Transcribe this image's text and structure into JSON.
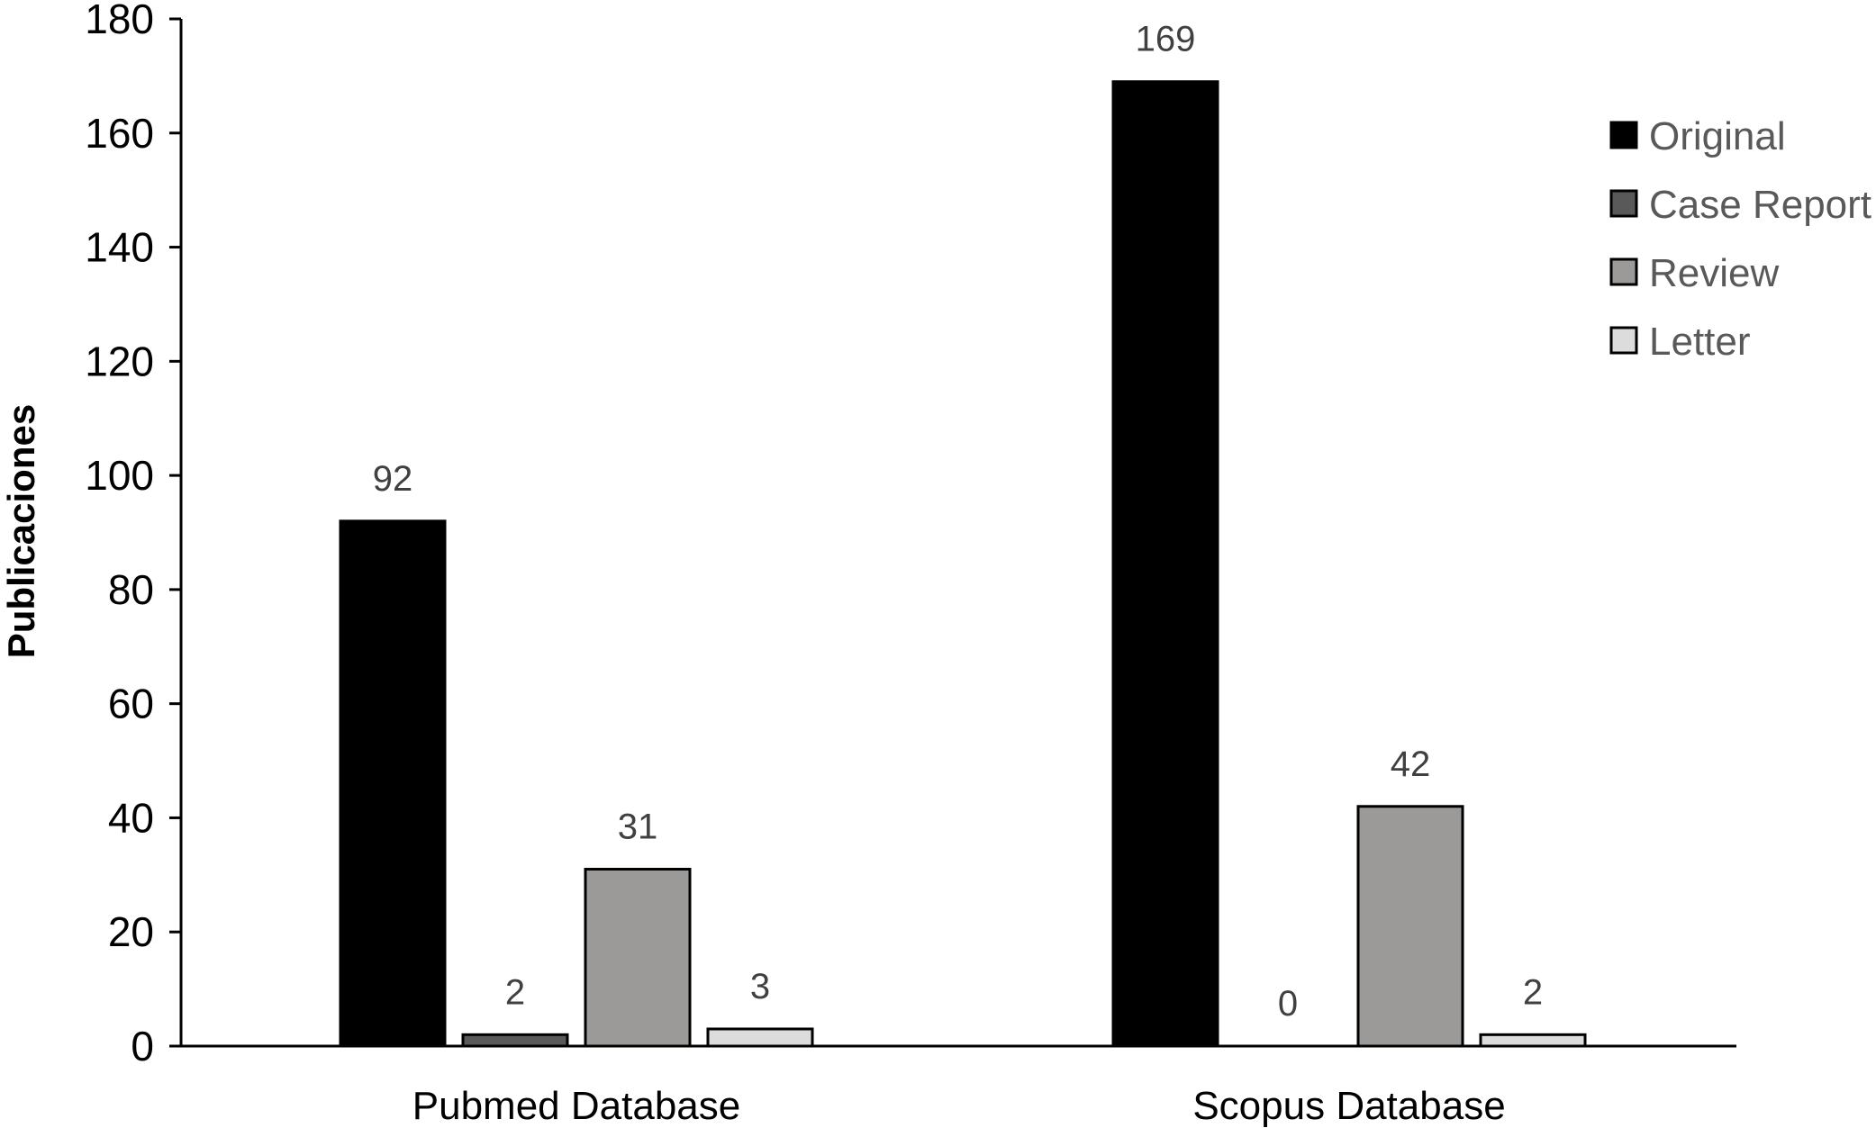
{
  "chart_data": {
    "type": "bar",
    "title": "",
    "xlabel": "",
    "ylabel": "Publicaciones",
    "categories": [
      "Pubmed Database",
      "Scopus Database"
    ],
    "series": [
      {
        "name": "Original",
        "values": [
          92,
          169
        ],
        "color": "#000000"
      },
      {
        "name": "Case Report",
        "values": [
          2,
          0
        ],
        "color": "#595959"
      },
      {
        "name": "Review",
        "values": [
          31,
          42
        ],
        "color": "#9c9a98"
      },
      {
        "name": "Letter",
        "values": [
          3,
          2
        ],
        "color": "#dcdcdc"
      }
    ],
    "ylim": [
      0,
      180
    ],
    "yticks": [
      0,
      20,
      40,
      60,
      80,
      100,
      120,
      140,
      160,
      180
    ],
    "grid": false,
    "legend": "right"
  }
}
